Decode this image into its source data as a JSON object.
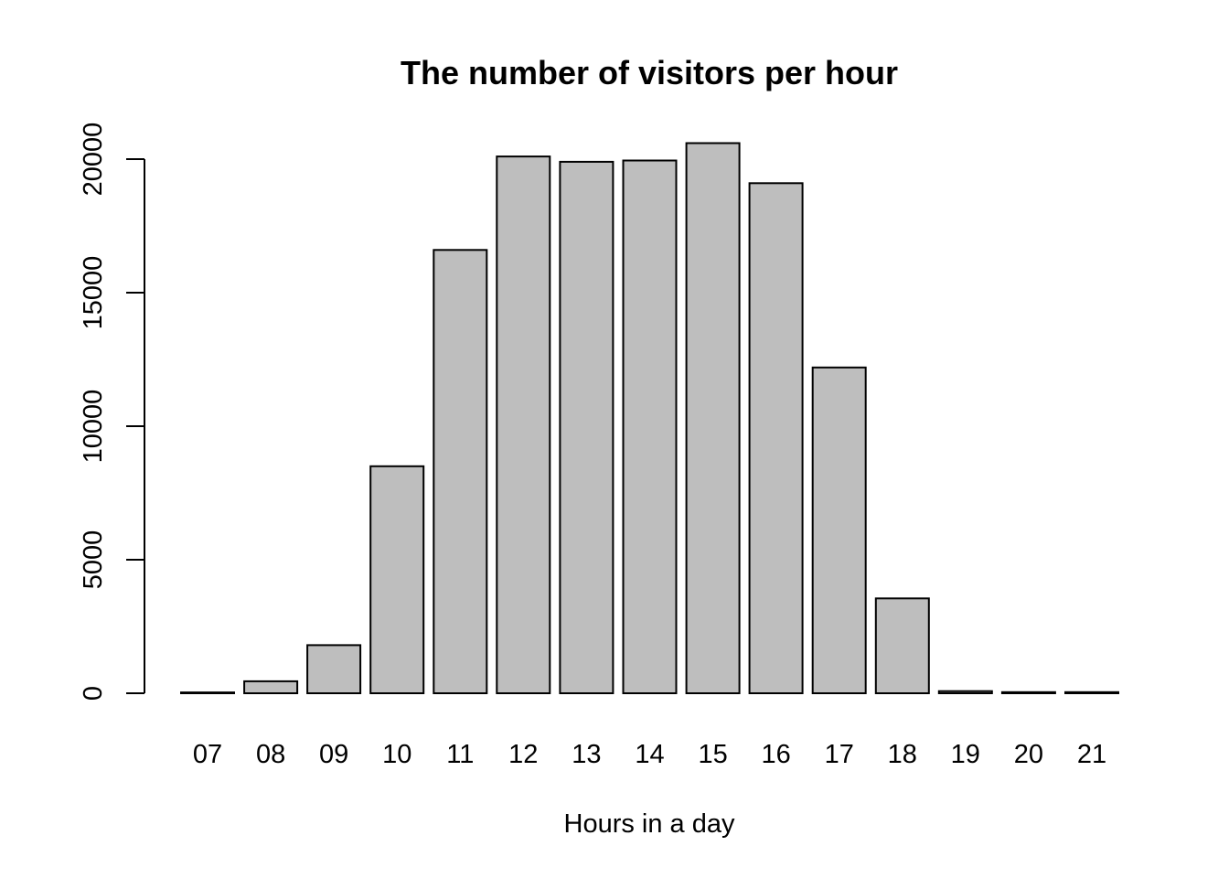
{
  "chart_data": {
    "type": "bar",
    "title": "The number of visitors per hour",
    "xlabel": "Hours in a day",
    "ylabel": "",
    "categories": [
      "07",
      "08",
      "09",
      "10",
      "11",
      "12",
      "13",
      "14",
      "15",
      "16",
      "17",
      "18",
      "19",
      "20",
      "21"
    ],
    "values": [
      30,
      450,
      1800,
      8500,
      16600,
      20100,
      19900,
      19950,
      20600,
      19100,
      12200,
      3550,
      80,
      40,
      40
    ],
    "ylim": [
      0,
      21500
    ],
    "yticks": [
      0,
      5000,
      10000,
      15000,
      20000
    ],
    "grid": false,
    "legend": "none",
    "bar_color": "#bebebe",
    "edge_color": "#000000"
  }
}
